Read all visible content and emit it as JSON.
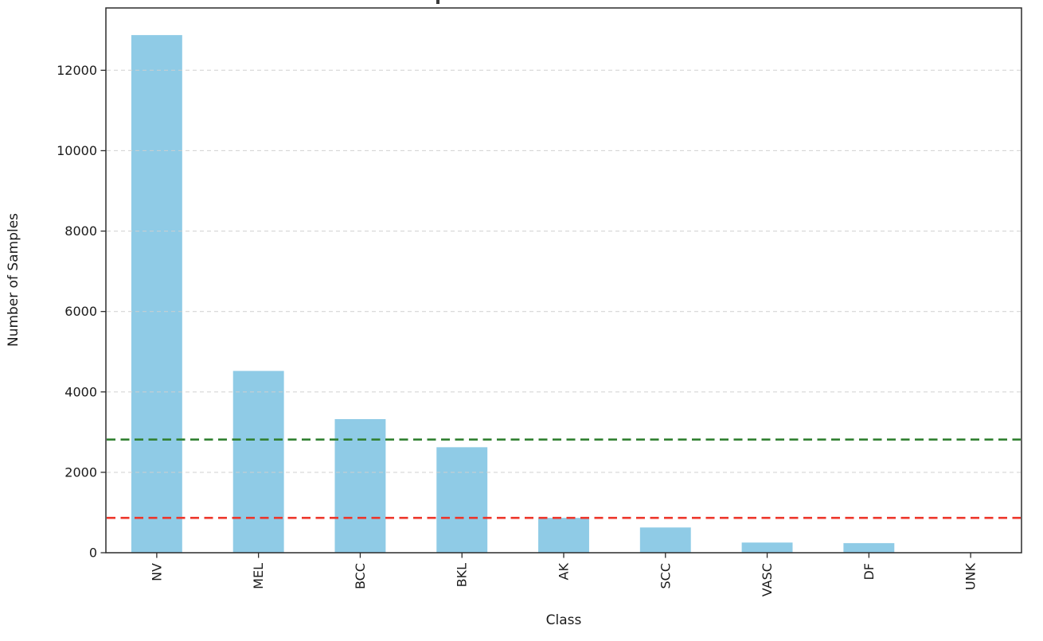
{
  "chart_data": {
    "type": "bar",
    "categories": [
      "NV",
      "MEL",
      "BCC",
      "BKL",
      "AK",
      "SCC",
      "VASC",
      "DF",
      "UNK"
    ],
    "values": [
      12875,
      4522,
      3323,
      2624,
      867,
      628,
      253,
      239,
      0
    ],
    "xlabel": "Class",
    "ylabel": "Number of Samples",
    "yticks": [
      0,
      2000,
      4000,
      6000,
      8000,
      10000,
      12000
    ],
    "ylim": [
      0,
      13550
    ],
    "x_tick_rotation": -90,
    "grid": "horizontal-dashed",
    "grid_above_bars": true,
    "legend": "none",
    "colors": {
      "bar": "#8FCBE6",
      "grid": "#cfcfcf",
      "axis": "#2b2b2b",
      "text": "#1a1a1a"
    },
    "reference_lines": [
      {
        "value": 2815,
        "color": "#318031",
        "style": "dashed"
      },
      {
        "value": 867,
        "color": "#ED352A",
        "style": "dashed"
      }
    ]
  }
}
